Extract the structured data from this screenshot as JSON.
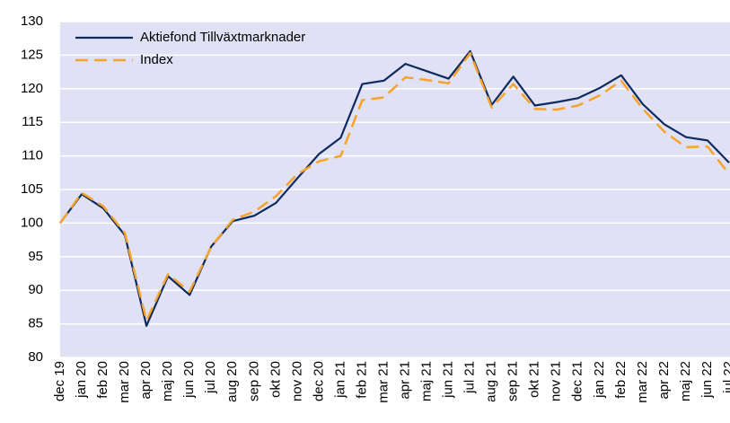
{
  "chart_data": {
    "type": "line",
    "categories": [
      "dec 19",
      "jan 20",
      "feb 20",
      "mar 20",
      "apr 20",
      "maj 20",
      "jun 20",
      "jul 20",
      "aug 20",
      "sep 20",
      "okt 20",
      "nov 20",
      "dec 20",
      "jan 21",
      "feb 21",
      "mar 21",
      "apr 21",
      "maj 21",
      "jun 21",
      "jul 21",
      "aug 21",
      "sep 21",
      "okt 21",
      "nov 21",
      "dec 21",
      "jan 22",
      "feb 22",
      "mar 22",
      "apr 22",
      "maj 22",
      "jun 22",
      "jul 22"
    ],
    "series": [
      {
        "name": "Aktiefond Tillväxtmarknader",
        "color": "#0d2a5e",
        "dash": false,
        "values": [
          100,
          104.3,
          102.2,
          98.2,
          84.7,
          92.1,
          89.3,
          96.5,
          100.3,
          101.1,
          103,
          106.7,
          110.3,
          112.7,
          120.7,
          121.2,
          123.7,
          122.6,
          121.5,
          125.6,
          117.6,
          121.8,
          117.5,
          118,
          118.6,
          120.1,
          122,
          117.7,
          114.7,
          112.8,
          112.3,
          109
        ]
      },
      {
        "name": "Index",
        "color": "#f5a32a",
        "dash": true,
        "values": [
          100,
          104.5,
          102.5,
          98.5,
          85.5,
          92.4,
          89.8,
          96.5,
          100.5,
          101.7,
          104,
          107.3,
          109.2,
          110,
          118.3,
          118.7,
          121.7,
          121.3,
          120.8,
          125.3,
          117.2,
          120.7,
          117,
          116.9,
          117.5,
          119,
          121.2,
          117,
          113.6,
          111.3,
          111.4,
          107.3
        ]
      }
    ],
    "ylim": [
      80,
      130
    ],
    "yticks": [
      80,
      85,
      90,
      95,
      100,
      105,
      110,
      115,
      120,
      125,
      130
    ],
    "grid": true,
    "legend": "top-left",
    "background": "#e1e1f6"
  }
}
